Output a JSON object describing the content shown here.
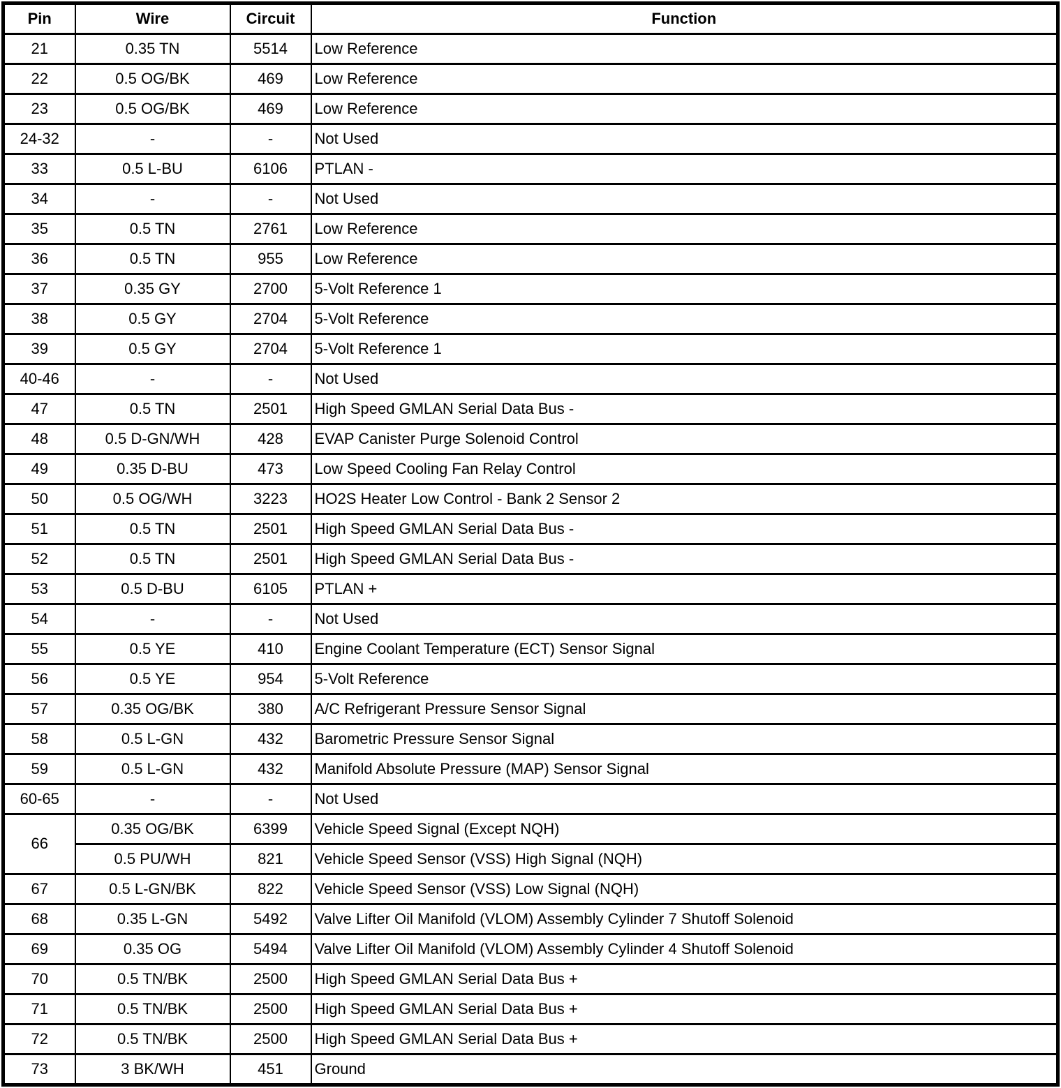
{
  "table": {
    "columns": [
      "Pin",
      "Wire",
      "Circuit",
      "Function"
    ],
    "rows": [
      {
        "pin": "21",
        "wire": "0.35 TN",
        "circuit": "5514",
        "function": "Low Reference"
      },
      {
        "pin": "22",
        "wire": "0.5 OG/BK",
        "circuit": "469",
        "function": "Low Reference"
      },
      {
        "pin": "23",
        "wire": "0.5 OG/BK",
        "circuit": "469",
        "function": "Low Reference"
      },
      {
        "pin": "24-32",
        "wire": "-",
        "circuit": "-",
        "function": "Not Used"
      },
      {
        "pin": "33",
        "wire": "0.5 L-BU",
        "circuit": "6106",
        "function": "PTLAN -"
      },
      {
        "pin": "34",
        "wire": "-",
        "circuit": "-",
        "function": "Not Used"
      },
      {
        "pin": "35",
        "wire": "0.5 TN",
        "circuit": "2761",
        "function": "Low Reference"
      },
      {
        "pin": "36",
        "wire": "0.5 TN",
        "circuit": "955",
        "function": "Low Reference"
      },
      {
        "pin": "37",
        "wire": "0.35 GY",
        "circuit": "2700",
        "function": "5-Volt Reference 1"
      },
      {
        "pin": "38",
        "wire": "0.5 GY",
        "circuit": "2704",
        "function": "5-Volt Reference"
      },
      {
        "pin": "39",
        "wire": "0.5 GY",
        "circuit": "2704",
        "function": "5-Volt Reference 1"
      },
      {
        "pin": "40-46",
        "wire": "-",
        "circuit": "-",
        "function": "Not Used"
      },
      {
        "pin": "47",
        "wire": "0.5 TN",
        "circuit": "2501",
        "function": "High Speed GMLAN Serial Data Bus -"
      },
      {
        "pin": "48",
        "wire": "0.5 D-GN/WH",
        "circuit": "428",
        "function": "EVAP Canister Purge Solenoid Control"
      },
      {
        "pin": "49",
        "wire": "0.35 D-BU",
        "circuit": "473",
        "function": "Low Speed Cooling Fan Relay Control"
      },
      {
        "pin": "50",
        "wire": "0.5 OG/WH",
        "circuit": "3223",
        "function": "HO2S Heater Low Control - Bank 2 Sensor 2"
      },
      {
        "pin": "51",
        "wire": "0.5 TN",
        "circuit": "2501",
        "function": "High Speed GMLAN Serial Data Bus -"
      },
      {
        "pin": "52",
        "wire": "0.5 TN",
        "circuit": "2501",
        "function": "High Speed GMLAN Serial Data Bus -"
      },
      {
        "pin": "53",
        "wire": "0.5 D-BU",
        "circuit": "6105",
        "function": "PTLAN +"
      },
      {
        "pin": "54",
        "wire": "-",
        "circuit": "-",
        "function": "Not Used"
      },
      {
        "pin": "55",
        "wire": "0.5 YE",
        "circuit": "410",
        "function": "Engine Coolant Temperature (ECT) Sensor Signal"
      },
      {
        "pin": "56",
        "wire": "0.5 YE",
        "circuit": "954",
        "function": "5-Volt Reference"
      },
      {
        "pin": "57",
        "wire": "0.35 OG/BK",
        "circuit": "380",
        "function": "A/C Refrigerant Pressure Sensor Signal"
      },
      {
        "pin": "58",
        "wire": "0.5 L-GN",
        "circuit": "432",
        "function": "Barometric Pressure Sensor Signal"
      },
      {
        "pin": "59",
        "wire": "0.5 L-GN",
        "circuit": "432",
        "function": "Manifold Absolute Pressure (MAP) Sensor Signal"
      },
      {
        "pin": "60-65",
        "wire": "-",
        "circuit": "-",
        "function": "Not Used"
      },
      {
        "pin": "66",
        "pin_rowspan": 2,
        "wire": "0.35 OG/BK",
        "circuit": "6399",
        "function": "Vehicle Speed Signal (Except NQH)"
      },
      {
        "wire": "0.5 PU/WH",
        "circuit": "821",
        "function": "Vehicle Speed Sensor (VSS) High Signal (NQH)"
      },
      {
        "pin": "67",
        "wire": "0.5 L-GN/BK",
        "circuit": "822",
        "function": "Vehicle Speed Sensor (VSS) Low Signal (NQH)"
      },
      {
        "pin": "68",
        "wire": "0.35 L-GN",
        "circuit": "5492",
        "function": "Valve Lifter Oil Manifold (VLOM) Assembly Cylinder 7 Shutoff Solenoid"
      },
      {
        "pin": "69",
        "wire": "0.35 OG",
        "circuit": "5494",
        "function": "Valve Lifter Oil Manifold (VLOM) Assembly Cylinder 4 Shutoff Solenoid"
      },
      {
        "pin": "70",
        "wire": "0.5 TN/BK",
        "circuit": "2500",
        "function": "High Speed GMLAN Serial Data Bus +"
      },
      {
        "pin": "71",
        "wire": "0.5 TN/BK",
        "circuit": "2500",
        "function": "High Speed GMLAN Serial Data Bus +"
      },
      {
        "pin": "72",
        "wire": "0.5 TN/BK",
        "circuit": "2500",
        "function": "High Speed GMLAN Serial Data Bus +"
      },
      {
        "pin": "73",
        "wire": "3 BK/WH",
        "circuit": "451",
        "function": "Ground"
      }
    ]
  },
  "colors": {
    "border": "#000000",
    "text": "#000000",
    "background": "#ffffff"
  }
}
